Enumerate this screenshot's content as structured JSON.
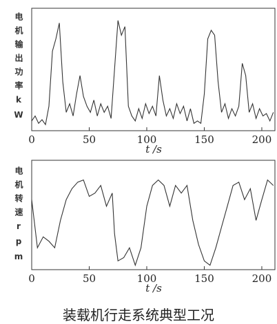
{
  "chart_data": [
    {
      "type": "line",
      "ylabel": "电机输出功率kW",
      "xlabel": "t /s",
      "xlim": [
        0,
        212
      ],
      "xticks": [
        0,
        50,
        100,
        150,
        200
      ],
      "ylim": [
        0,
        100
      ],
      "x": [
        0,
        3,
        6,
        9,
        12,
        15,
        18,
        21,
        24,
        27,
        30,
        33,
        36,
        39,
        42,
        45,
        48,
        51,
        54,
        57,
        60,
        63,
        66,
        69,
        72,
        75,
        78,
        81,
        84,
        87,
        90,
        93,
        96,
        99,
        102,
        105,
        108,
        111,
        114,
        117,
        120,
        123,
        126,
        129,
        132,
        135,
        138,
        141,
        144,
        147,
        150,
        153,
        156,
        159,
        162,
        165,
        168,
        171,
        174,
        177,
        180,
        183,
        186,
        189,
        192,
        195,
        198,
        201,
        204,
        207,
        210
      ],
      "series": [
        {
          "color": "#333333",
          "values": [
            8,
            12,
            6,
            9,
            5,
            20,
            65,
            75,
            88,
            40,
            15,
            22,
            12,
            30,
            45,
            28,
            20,
            15,
            25,
            12,
            22,
            15,
            20,
            10,
            50,
            90,
            78,
            85,
            20,
            12,
            8,
            18,
            10,
            22,
            14,
            20,
            12,
            45,
            25,
            12,
            18,
            10,
            22,
            14,
            20,
            8,
            18,
            6,
            8,
            6,
            30,
            75,
            82,
            78,
            40,
            15,
            22,
            10,
            18,
            12,
            20,
            55,
            45,
            15,
            22,
            10,
            18,
            12,
            14,
            8,
            15
          ]
        }
      ]
    },
    {
      "type": "line",
      "ylabel": "电机转速rpm",
      "xlabel": "t /s",
      "xlim": [
        0,
        212
      ],
      "xticks": [
        0,
        50,
        100,
        150,
        200
      ],
      "ylim": [
        0,
        100
      ],
      "x": [
        0,
        5,
        10,
        15,
        20,
        25,
        30,
        35,
        40,
        45,
        50,
        55,
        60,
        65,
        70,
        72,
        75,
        80,
        85,
        90,
        95,
        100,
        105,
        110,
        115,
        120,
        125,
        130,
        135,
        140,
        145,
        150,
        155,
        160,
        165,
        170,
        175,
        180,
        185,
        190,
        195,
        200,
        205,
        210
      ],
      "series": [
        {
          "color": "#333333",
          "values": [
            64,
            20,
            30,
            26,
            20,
            45,
            64,
            74,
            80,
            82,
            67,
            70,
            77,
            58,
            70,
            33,
            8,
            11,
            20,
            4,
            20,
            58,
            77,
            82,
            77,
            58,
            77,
            70,
            77,
            45,
            23,
            8,
            4,
            20,
            39,
            58,
            77,
            80,
            64,
            74,
            45,
            64,
            82,
            77
          ]
        }
      ]
    }
  ],
  "caption": "装载机行走系统典型工况"
}
